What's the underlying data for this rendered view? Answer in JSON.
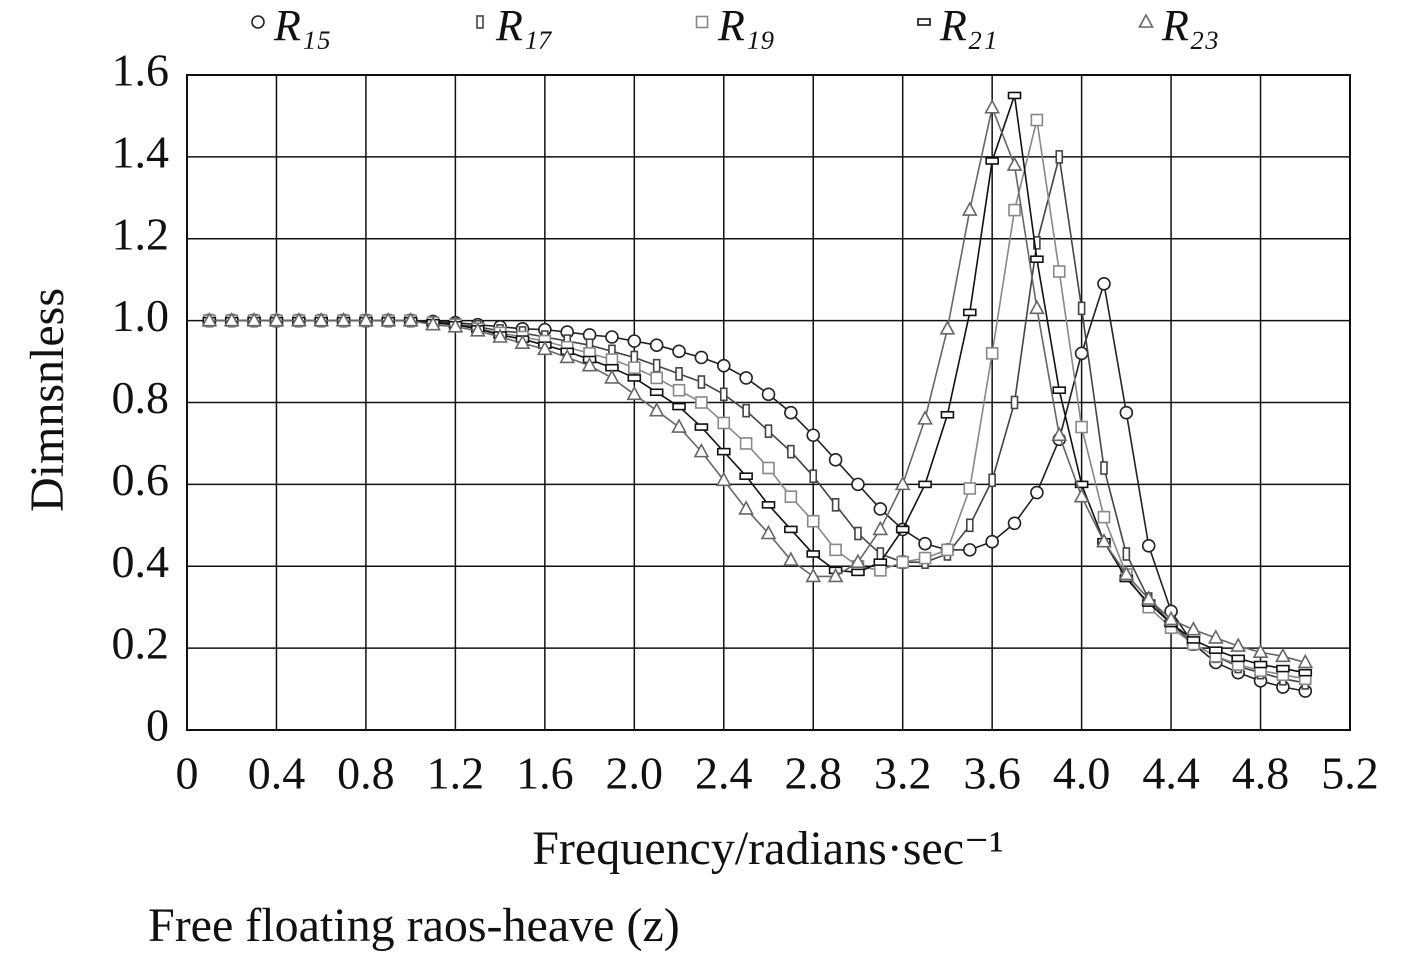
{
  "chart_data": {
    "type": "line",
    "xlabel": "Frequency/radians·sec⁻¹",
    "ylabel": "Dimnsnless",
    "caption": "Free floating raos-heave (z)",
    "x": [
      0.1,
      0.2,
      0.3,
      0.4,
      0.5,
      0.6,
      0.7,
      0.8,
      0.9,
      1.0,
      1.1,
      1.2,
      1.3,
      1.4,
      1.5,
      1.6,
      1.7,
      1.8,
      1.9,
      2.0,
      2.1,
      2.2,
      2.3,
      2.4,
      2.5,
      2.6,
      2.7,
      2.8,
      2.9,
      3.0,
      3.1,
      3.2,
      3.3,
      3.4,
      3.5,
      3.6,
      3.7,
      3.8,
      3.9,
      4.0,
      4.1,
      4.2,
      4.3,
      4.4,
      4.5,
      4.6,
      4.7,
      4.8,
      4.9,
      5.0
    ],
    "series": [
      {
        "name": "R₁₅",
        "color": "#222222",
        "marker": "circle",
        "values": [
          1,
          1,
          1,
          1,
          1,
          1,
          1,
          1,
          1,
          1,
          0.998,
          0.995,
          0.99,
          0.985,
          0.98,
          0.978,
          0.972,
          0.965,
          0.96,
          0.95,
          0.94,
          0.925,
          0.91,
          0.89,
          0.86,
          0.82,
          0.775,
          0.72,
          0.66,
          0.6,
          0.54,
          0.49,
          0.455,
          0.44,
          0.44,
          0.46,
          0.505,
          0.58,
          0.71,
          0.92,
          1.09,
          0.775,
          0.45,
          0.29,
          0.21,
          0.165,
          0.14,
          0.12,
          0.105,
          0.095
        ]
      },
      {
        "name": "R₁₇",
        "color": "#444444",
        "marker": "vrect",
        "values": [
          1,
          1,
          1,
          1,
          1,
          1,
          1,
          1,
          1,
          1,
          0.995,
          0.99,
          0.985,
          0.975,
          0.97,
          0.96,
          0.95,
          0.94,
          0.925,
          0.91,
          0.89,
          0.87,
          0.85,
          0.82,
          0.78,
          0.73,
          0.68,
          0.62,
          0.55,
          0.48,
          0.43,
          0.41,
          0.41,
          0.43,
          0.5,
          0.61,
          0.8,
          1.19,
          1.4,
          1.03,
          0.64,
          0.43,
          0.32,
          0.26,
          0.21,
          0.18,
          0.155,
          0.14,
          0.125,
          0.115
        ]
      },
      {
        "name": "R₁₉",
        "color": "#888888",
        "marker": "square",
        "values": [
          1,
          1,
          1,
          1,
          1,
          1,
          1,
          1,
          1,
          1,
          0.995,
          0.99,
          0.98,
          0.97,
          0.96,
          0.95,
          0.935,
          0.92,
          0.905,
          0.885,
          0.86,
          0.83,
          0.8,
          0.75,
          0.7,
          0.64,
          0.57,
          0.51,
          0.44,
          0.4,
          0.39,
          0.41,
          0.42,
          0.44,
          0.59,
          0.92,
          1.27,
          1.49,
          1.12,
          0.74,
          0.52,
          0.38,
          0.3,
          0.25,
          0.21,
          0.18,
          0.16,
          0.145,
          0.135,
          0.125
        ]
      },
      {
        "name": "R₂₁",
        "color": "#111111",
        "marker": "hrect",
        "values": [
          1,
          1,
          1,
          1,
          1,
          1,
          1,
          1,
          1,
          1,
          0.995,
          0.99,
          0.98,
          0.965,
          0.955,
          0.94,
          0.925,
          0.905,
          0.885,
          0.86,
          0.825,
          0.79,
          0.74,
          0.68,
          0.62,
          0.55,
          0.49,
          0.43,
          0.39,
          0.385,
          0.41,
          0.49,
          0.6,
          0.77,
          1.02,
          1.39,
          1.55,
          1.15,
          0.83,
          0.6,
          0.46,
          0.37,
          0.31,
          0.26,
          0.22,
          0.195,
          0.175,
          0.16,
          0.15,
          0.14
        ]
      },
      {
        "name": "R₂₃",
        "color": "#666666",
        "marker": "triangle",
        "values": [
          1,
          1,
          1,
          1,
          1,
          1,
          1,
          1,
          1,
          1,
          0.99,
          0.985,
          0.975,
          0.96,
          0.945,
          0.93,
          0.91,
          0.89,
          0.86,
          0.82,
          0.78,
          0.74,
          0.68,
          0.61,
          0.54,
          0.48,
          0.415,
          0.375,
          0.375,
          0.41,
          0.49,
          0.6,
          0.76,
          0.98,
          1.27,
          1.52,
          1.38,
          1.03,
          0.72,
          0.57,
          0.46,
          0.38,
          0.32,
          0.27,
          0.245,
          0.225,
          0.205,
          0.19,
          0.18,
          0.165
        ]
      }
    ],
    "xlim": [
      0,
      5.2
    ],
    "xticks": [
      0,
      0.4,
      0.8,
      1.2,
      1.6,
      {
        "value": 2,
        "label": "2.0"
      },
      2.4,
      2.8,
      3.2,
      3.6,
      {
        "value": 4,
        "label": "4.0"
      },
      4.4,
      4.8,
      5.2
    ],
    "ylim": [
      0,
      1.6
    ],
    "yticks": [
      0,
      0.2,
      0.4,
      0.6,
      0.8,
      {
        "value": 1,
        "label": "1.0"
      },
      1.2,
      1.4,
      1.6
    ],
    "grid": true,
    "legend": "top"
  }
}
